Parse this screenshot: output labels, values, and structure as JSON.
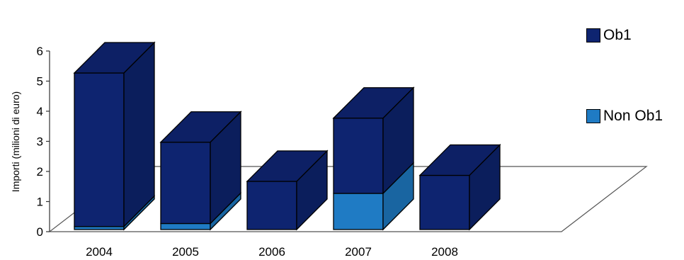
{
  "chart_data": {
    "type": "bar",
    "stacked": true,
    "three_d": true,
    "categories": [
      "2004",
      "2005",
      "2006",
      "2007",
      "2008"
    ],
    "series": [
      {
        "name": "Non Ob1",
        "color": "#1f7bc4",
        "values": [
          0.1,
          0.2,
          0.0,
          1.2,
          0.0
        ]
      },
      {
        "name": "Ob1",
        "color": "#0e2470",
        "values": [
          5.1,
          2.7,
          1.6,
          2.5,
          1.8
        ]
      }
    ],
    "ylabel": "Importi (milioni di euro)",
    "ylim": [
      0,
      6
    ],
    "yticks": [
      "0",
      "1",
      "2",
      "3",
      "4",
      "5",
      "6"
    ],
    "legend_position": "right",
    "grid": false
  }
}
